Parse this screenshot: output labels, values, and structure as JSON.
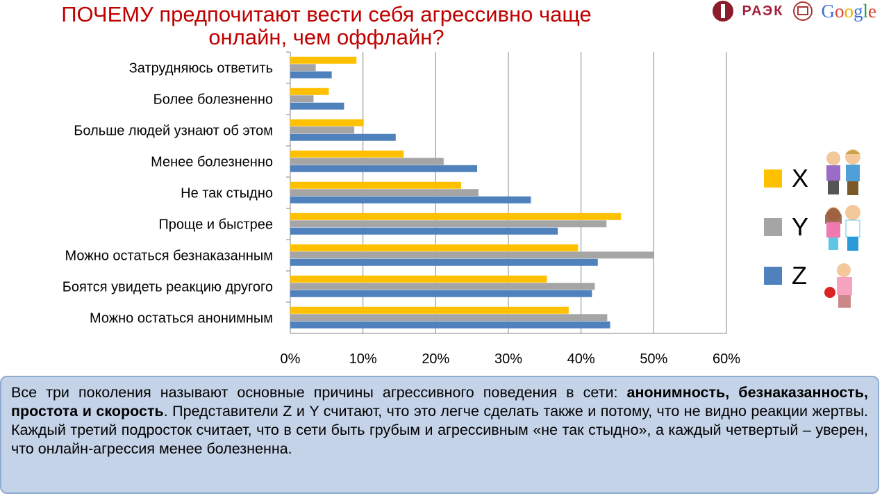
{
  "title": "ПОЧЕМУ предпочитают вести себя агрессивно чаще онлайн, чем оффлайн?",
  "logos": {
    "raek": "РАЭК",
    "google": "Google"
  },
  "chart_data": {
    "type": "bar",
    "orientation": "horizontal",
    "title": "ПОЧЕМУ предпочитают вести себя агрессивно чаще онлайн, чем оффлайн?",
    "categories": [
      "Затрудняюсь ответить",
      "Более болезненно",
      "Больше людей узнают об этом",
      "Менее болезненно",
      "Не так стыдно",
      "Проще и быстрее",
      "Можно остаться безнаказанным",
      "Боятся увидеть реакцию другого",
      "Можно остаться анонимным"
    ],
    "series": [
      {
        "name": "X",
        "color": "#ffc000",
        "values": [
          9.1,
          5.3,
          10.1,
          15.6,
          23.5,
          45.5,
          39.6,
          35.3,
          38.3
        ]
      },
      {
        "name": "Y",
        "color": "#a5a5a5",
        "values": [
          3.5,
          3.2,
          8.8,
          21.1,
          25.9,
          43.5,
          50.0,
          41.9,
          43.6
        ]
      },
      {
        "name": "Z",
        "color": "#4f81bd",
        "values": [
          5.7,
          7.4,
          14.5,
          25.7,
          33.1,
          36.8,
          42.3,
          41.5,
          44.0
        ]
      }
    ],
    "xlim": [
      0,
      60
    ],
    "ticks": [
      "0%",
      "10%",
      "20%",
      "30%",
      "40%",
      "50%",
      "60%"
    ],
    "grid": true,
    "legend": "right"
  },
  "note": {
    "p1": "Все три поколения называют основные причины агрессивного поведения в сети: ",
    "bold": "анонимность, безнаказанность, простота и скорость",
    "p2": ". Представители Z и Y считают, что это легче сделать также и потому, что не видно реакции жертвы. Каждый третий подросток считает, что в сети быть грубым и агрессивным «не так стыдно», а каждый четвертый – уверен, что  онлайн-агрессия менее болезненна."
  }
}
